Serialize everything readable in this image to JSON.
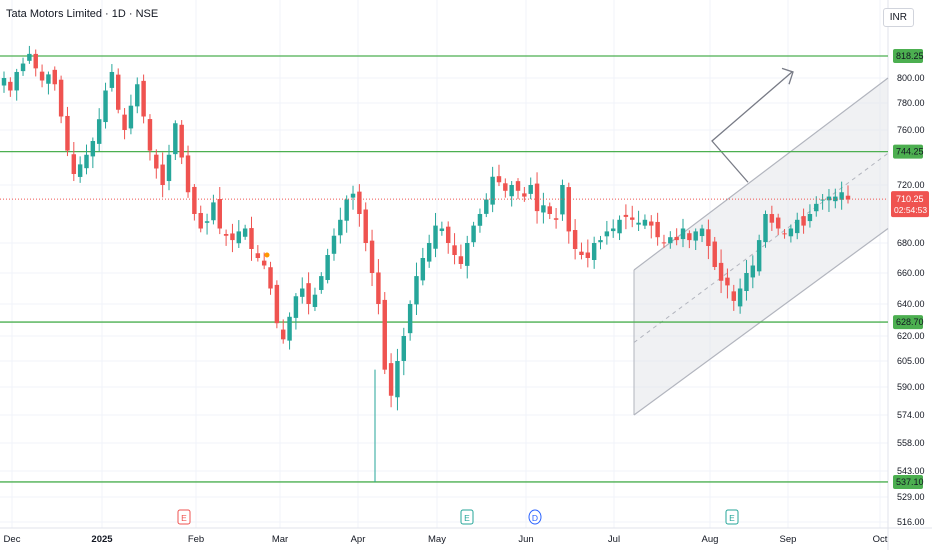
{
  "header": {
    "title": "Tata Motors Limited · 1D · NSE",
    "currency": "INR"
  },
  "colors": {
    "up": "#26a69a",
    "down": "#ef5350",
    "hline": "#4caf50",
    "channel": "#b2b5be",
    "grid": "#f0f3fa"
  },
  "chart_data": {
    "type": "candlestick",
    "title": "Tata Motors Limited · 1D · NSE",
    "ylabel": "INR",
    "y_axis_ticks": [
      800,
      780,
      760,
      720,
      680,
      660,
      640,
      620,
      605,
      590,
      574,
      558,
      543,
      529,
      516
    ],
    "x_axis_ticks": [
      "Dec",
      "2025",
      "Feb",
      "Mar",
      "Apr",
      "May",
      "Jun",
      "Jul",
      "Aug",
      "Sep",
      "Oct"
    ],
    "levels": [
      {
        "value": 818.25,
        "label": "818.25"
      },
      {
        "value": 744.25,
        "label": "744.25"
      },
      {
        "value": 628.7,
        "label": "628.70"
      },
      {
        "value": 537.1,
        "label": "537.10"
      }
    ],
    "last_price": {
      "value": 710.25,
      "label": "710.25",
      "countdown": "02:54:53"
    },
    "event_markers": [
      {
        "letter": "E",
        "color": "#ef5350",
        "month": "Feb"
      },
      {
        "letter": "E",
        "color": "#26a69a",
        "month": "May"
      },
      {
        "letter": "D",
        "color": "#2962ff",
        "month": "Jun"
      },
      {
        "letter": "E",
        "color": "#26a69a",
        "month": "Aug"
      }
    ],
    "closes": [
      800,
      790,
      805,
      812,
      820,
      808,
      798,
      803,
      795,
      770,
      745,
      728,
      735,
      742,
      752,
      768,
      790,
      805,
      775,
      760,
      778,
      795,
      770,
      745,
      732,
      720,
      742,
      765,
      740,
      715,
      700,
      690,
      695,
      708,
      690,
      685,
      682,
      688,
      690,
      676,
      670,
      665,
      650,
      628,
      618,
      632,
      645,
      650,
      640,
      646,
      658,
      672,
      685,
      696,
      710,
      714,
      700,
      680,
      660,
      640,
      600,
      585,
      605,
      620,
      640,
      658,
      670,
      680,
      692,
      690,
      680,
      672,
      666,
      680,
      692,
      700,
      710,
      726,
      722,
      716,
      720,
      716,
      712,
      720,
      702,
      706,
      700,
      696,
      720,
      688,
      676,
      672,
      670,
      680,
      682,
      688,
      690,
      696,
      698,
      696,
      694,
      696,
      692,
      684,
      680,
      684,
      682,
      690,
      682,
      688,
      690,
      678,
      664,
      655,
      652,
      642,
      650,
      660,
      665,
      682,
      700,
      694,
      690,
      686,
      690,
      696,
      692,
      700,
      707,
      710,
      712,
      712,
      715,
      710
    ]
  }
}
